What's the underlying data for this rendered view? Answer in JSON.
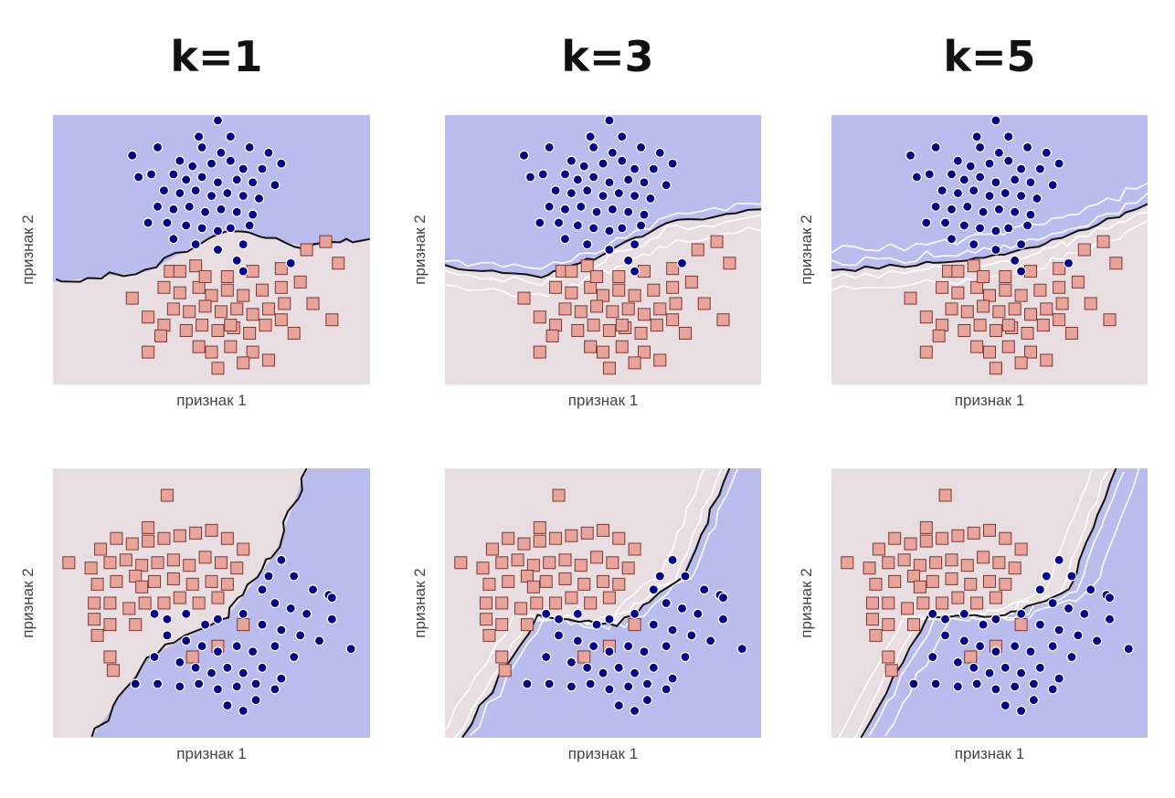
{
  "column_titles": [
    "k=1",
    "k=3",
    "k=5"
  ],
  "colors": {
    "class_a_region": "#b9bcec",
    "class_b_region": "#e8dde0",
    "class_a_point": "#00008b",
    "class_b_point": "#e8a39b",
    "class_b_point_edge": "#7d3a33",
    "boundary": "#111111",
    "fold_boundary": "#ffffff"
  },
  "chart_data": [
    {
      "type": "scatter",
      "row": 1,
      "k": 1,
      "xlabel": "признак 1",
      "ylabel": "признак 2",
      "xlim": [
        0,
        1
      ],
      "ylim": [
        0,
        1
      ],
      "grid": false,
      "boundary": [
        [
          0,
          0.38
        ],
        [
          0.3,
          0.42
        ],
        [
          0.55,
          0.58
        ],
        [
          0.8,
          0.51
        ],
        [
          1,
          0.54
        ]
      ],
      "upper_class": "A"
    },
    {
      "type": "scatter",
      "row": 1,
      "k": 3,
      "xlabel": "признак 1",
      "ylabel": "признак 2",
      "xlim": [
        0,
        1
      ],
      "ylim": [
        0,
        1
      ],
      "grid": false,
      "boundary": [
        [
          0,
          0.44
        ],
        [
          0.3,
          0.4
        ],
        [
          0.5,
          0.48
        ],
        [
          0.7,
          0.6
        ],
        [
          1,
          0.65
        ]
      ],
      "upper_class": "A"
    },
    {
      "type": "scatter",
      "row": 1,
      "k": 5,
      "xlabel": "признак 1",
      "ylabel": "признак 2",
      "xlim": [
        0,
        1
      ],
      "ylim": [
        0,
        1
      ],
      "grid": false,
      "boundary": [
        [
          0,
          0.42
        ],
        [
          0.3,
          0.45
        ],
        [
          0.55,
          0.48
        ],
        [
          0.75,
          0.55
        ],
        [
          1,
          0.67
        ]
      ],
      "upper_class": "A"
    },
    {
      "type": "scatter",
      "row": 2,
      "k": 1,
      "xlabel": "признак 1",
      "ylabel": "признак 2",
      "xlim": [
        0,
        1
      ],
      "ylim": [
        0,
        1
      ],
      "grid": false,
      "boundary": [
        [
          0.12,
          0
        ],
        [
          0.3,
          0.3
        ],
        [
          0.55,
          0.45
        ],
        [
          0.7,
          0.68
        ],
        [
          0.8,
          1
        ]
      ],
      "upper_class": "B"
    },
    {
      "type": "scatter",
      "row": 2,
      "k": 3,
      "xlabel": "признак 1",
      "ylabel": "признак 2",
      "xlim": [
        0,
        1
      ],
      "ylim": [
        0,
        1
      ],
      "grid": false,
      "boundary": [
        [
          0.05,
          0
        ],
        [
          0.3,
          0.45
        ],
        [
          0.55,
          0.42
        ],
        [
          0.75,
          0.6
        ],
        [
          0.9,
          1
        ]
      ],
      "upper_class": "B"
    },
    {
      "type": "scatter",
      "row": 2,
      "k": 5,
      "xlabel": "признак 1",
      "ylabel": "признак 2",
      "xlim": [
        0,
        1
      ],
      "ylim": [
        0,
        1
      ],
      "grid": false,
      "boundary": [
        [
          0.1,
          0
        ],
        [
          0.3,
          0.45
        ],
        [
          0.55,
          0.45
        ],
        [
          0.75,
          0.55
        ],
        [
          0.9,
          1
        ]
      ],
      "upper_class": "B"
    }
  ],
  "points_top": {
    "A": [
      [
        0.52,
        0.98
      ],
      [
        0.33,
        0.88
      ],
      [
        0.47,
        0.88
      ],
      [
        0.53,
        0.86
      ],
      [
        0.62,
        0.88
      ],
      [
        0.68,
        0.86
      ],
      [
        0.4,
        0.83
      ],
      [
        0.44,
        0.81
      ],
      [
        0.5,
        0.82
      ],
      [
        0.56,
        0.83
      ],
      [
        0.6,
        0.8
      ],
      [
        0.66,
        0.8
      ],
      [
        0.27,
        0.77
      ],
      [
        0.31,
        0.78
      ],
      [
        0.38,
        0.78
      ],
      [
        0.42,
        0.76
      ],
      [
        0.47,
        0.77
      ],
      [
        0.52,
        0.75
      ],
      [
        0.58,
        0.76
      ],
      [
        0.63,
        0.75
      ],
      [
        0.7,
        0.74
      ],
      [
        0.35,
        0.72
      ],
      [
        0.4,
        0.71
      ],
      [
        0.45,
        0.72
      ],
      [
        0.5,
        0.7
      ],
      [
        0.55,
        0.71
      ],
      [
        0.6,
        0.7
      ],
      [
        0.65,
        0.69
      ],
      [
        0.33,
        0.66
      ],
      [
        0.38,
        0.65
      ],
      [
        0.43,
        0.66
      ],
      [
        0.48,
        0.64
      ],
      [
        0.53,
        0.65
      ],
      [
        0.58,
        0.64
      ],
      [
        0.63,
        0.63
      ],
      [
        0.3,
        0.6
      ],
      [
        0.36,
        0.6
      ],
      [
        0.42,
        0.59
      ],
      [
        0.47,
        0.58
      ],
      [
        0.52,
        0.57
      ],
      [
        0.56,
        0.58
      ],
      [
        0.62,
        0.59
      ],
      [
        0.45,
        0.52
      ],
      [
        0.52,
        0.5
      ],
      [
        0.58,
        0.46
      ],
      [
        0.38,
        0.54
      ],
      [
        0.6,
        0.42
      ],
      [
        0.75,
        0.45
      ],
      [
        0.6,
        0.52
      ],
      [
        0.25,
        0.85
      ],
      [
        0.72,
        0.82
      ],
      [
        0.46,
        0.92
      ],
      [
        0.56,
        0.92
      ]
    ],
    "B": [
      [
        0.37,
        0.42
      ],
      [
        0.45,
        0.44
      ],
      [
        0.55,
        0.4
      ],
      [
        0.63,
        0.42
      ],
      [
        0.72,
        0.43
      ],
      [
        0.8,
        0.5
      ],
      [
        0.9,
        0.45
      ],
      [
        0.86,
        0.53
      ],
      [
        0.35,
        0.36
      ],
      [
        0.4,
        0.34
      ],
      [
        0.46,
        0.36
      ],
      [
        0.5,
        0.33
      ],
      [
        0.55,
        0.35
      ],
      [
        0.6,
        0.33
      ],
      [
        0.66,
        0.35
      ],
      [
        0.72,
        0.36
      ],
      [
        0.78,
        0.38
      ],
      [
        0.38,
        0.28
      ],
      [
        0.43,
        0.27
      ],
      [
        0.48,
        0.29
      ],
      [
        0.53,
        0.27
      ],
      [
        0.58,
        0.28
      ],
      [
        0.63,
        0.26
      ],
      [
        0.68,
        0.28
      ],
      [
        0.73,
        0.3
      ],
      [
        0.42,
        0.2
      ],
      [
        0.47,
        0.22
      ],
      [
        0.52,
        0.2
      ],
      [
        0.57,
        0.21
      ],
      [
        0.62,
        0.19
      ],
      [
        0.67,
        0.22
      ],
      [
        0.72,
        0.24
      ],
      [
        0.3,
        0.25
      ],
      [
        0.35,
        0.22
      ],
      [
        0.88,
        0.24
      ],
      [
        0.25,
        0.32
      ],
      [
        0.5,
        0.12
      ],
      [
        0.56,
        0.14
      ],
      [
        0.63,
        0.12
      ],
      [
        0.52,
        0.06
      ],
      [
        0.6,
        0.08
      ],
      [
        0.68,
        0.09
      ],
      [
        0.3,
        0.12
      ],
      [
        0.34,
        0.18
      ],
      [
        0.46,
        0.14
      ],
      [
        0.76,
        0.19
      ],
      [
        0.82,
        0.3
      ],
      [
        0.4,
        0.42
      ],
      [
        0.56,
        0.22
      ],
      [
        0.48,
        0.4
      ]
    ]
  },
  "points_bottom": {
    "B": [
      [
        0.36,
        0.9
      ],
      [
        0.3,
        0.78
      ],
      [
        0.15,
        0.7
      ],
      [
        0.2,
        0.74
      ],
      [
        0.25,
        0.72
      ],
      [
        0.3,
        0.73
      ],
      [
        0.35,
        0.74
      ],
      [
        0.4,
        0.75
      ],
      [
        0.45,
        0.76
      ],
      [
        0.5,
        0.77
      ],
      [
        0.55,
        0.74
      ],
      [
        0.6,
        0.7
      ],
      [
        0.18,
        0.65
      ],
      [
        0.23,
        0.66
      ],
      [
        0.28,
        0.64
      ],
      [
        0.33,
        0.65
      ],
      [
        0.38,
        0.66
      ],
      [
        0.43,
        0.64
      ],
      [
        0.48,
        0.67
      ],
      [
        0.53,
        0.65
      ],
      [
        0.58,
        0.63
      ],
      [
        0.12,
        0.63
      ],
      [
        0.05,
        0.65
      ],
      [
        0.14,
        0.57
      ],
      [
        0.2,
        0.58
      ],
      [
        0.26,
        0.6
      ],
      [
        0.32,
        0.58
      ],
      [
        0.38,
        0.59
      ],
      [
        0.44,
        0.57
      ],
      [
        0.5,
        0.58
      ],
      [
        0.55,
        0.57
      ],
      [
        0.13,
        0.5
      ],
      [
        0.18,
        0.5
      ],
      [
        0.24,
        0.48
      ],
      [
        0.29,
        0.5
      ],
      [
        0.35,
        0.5
      ],
      [
        0.4,
        0.52
      ],
      [
        0.46,
        0.5
      ],
      [
        0.52,
        0.52
      ],
      [
        0.13,
        0.44
      ],
      [
        0.18,
        0.42
      ],
      [
        0.26,
        0.42
      ],
      [
        0.14,
        0.38
      ],
      [
        0.18,
        0.3
      ],
      [
        0.19,
        0.25
      ],
      [
        0.44,
        0.3
      ],
      [
        0.52,
        0.34
      ],
      [
        0.6,
        0.42
      ],
      [
        0.28,
        0.56
      ]
    ],
    "A": [
      [
        0.72,
        0.66
      ],
      [
        0.76,
        0.6
      ],
      [
        0.82,
        0.55
      ],
      [
        0.87,
        0.53
      ],
      [
        0.66,
        0.55
      ],
      [
        0.7,
        0.5
      ],
      [
        0.75,
        0.48
      ],
      [
        0.8,
        0.46
      ],
      [
        0.88,
        0.44
      ],
      [
        0.94,
        0.33
      ],
      [
        0.32,
        0.46
      ],
      [
        0.36,
        0.44
      ],
      [
        0.42,
        0.46
      ],
      [
        0.48,
        0.42
      ],
      [
        0.52,
        0.44
      ],
      [
        0.6,
        0.46
      ],
      [
        0.66,
        0.42
      ],
      [
        0.72,
        0.4
      ],
      [
        0.78,
        0.38
      ],
      [
        0.84,
        0.36
      ],
      [
        0.36,
        0.38
      ],
      [
        0.42,
        0.36
      ],
      [
        0.47,
        0.34
      ],
      [
        0.52,
        0.32
      ],
      [
        0.58,
        0.34
      ],
      [
        0.63,
        0.32
      ],
      [
        0.7,
        0.34
      ],
      [
        0.76,
        0.3
      ],
      [
        0.4,
        0.28
      ],
      [
        0.45,
        0.26
      ],
      [
        0.5,
        0.24
      ],
      [
        0.55,
        0.26
      ],
      [
        0.6,
        0.24
      ],
      [
        0.66,
        0.26
      ],
      [
        0.72,
        0.22
      ],
      [
        0.33,
        0.2
      ],
      [
        0.4,
        0.19
      ],
      [
        0.46,
        0.2
      ],
      [
        0.52,
        0.18
      ],
      [
        0.58,
        0.19
      ],
      [
        0.64,
        0.2
      ],
      [
        0.7,
        0.18
      ],
      [
        0.55,
        0.12
      ],
      [
        0.6,
        0.1
      ],
      [
        0.64,
        0.14
      ],
      [
        0.32,
        0.3
      ],
      [
        0.26,
        0.2
      ],
      [
        0.88,
        0.52
      ],
      [
        0.68,
        0.6
      ]
    ]
  }
}
